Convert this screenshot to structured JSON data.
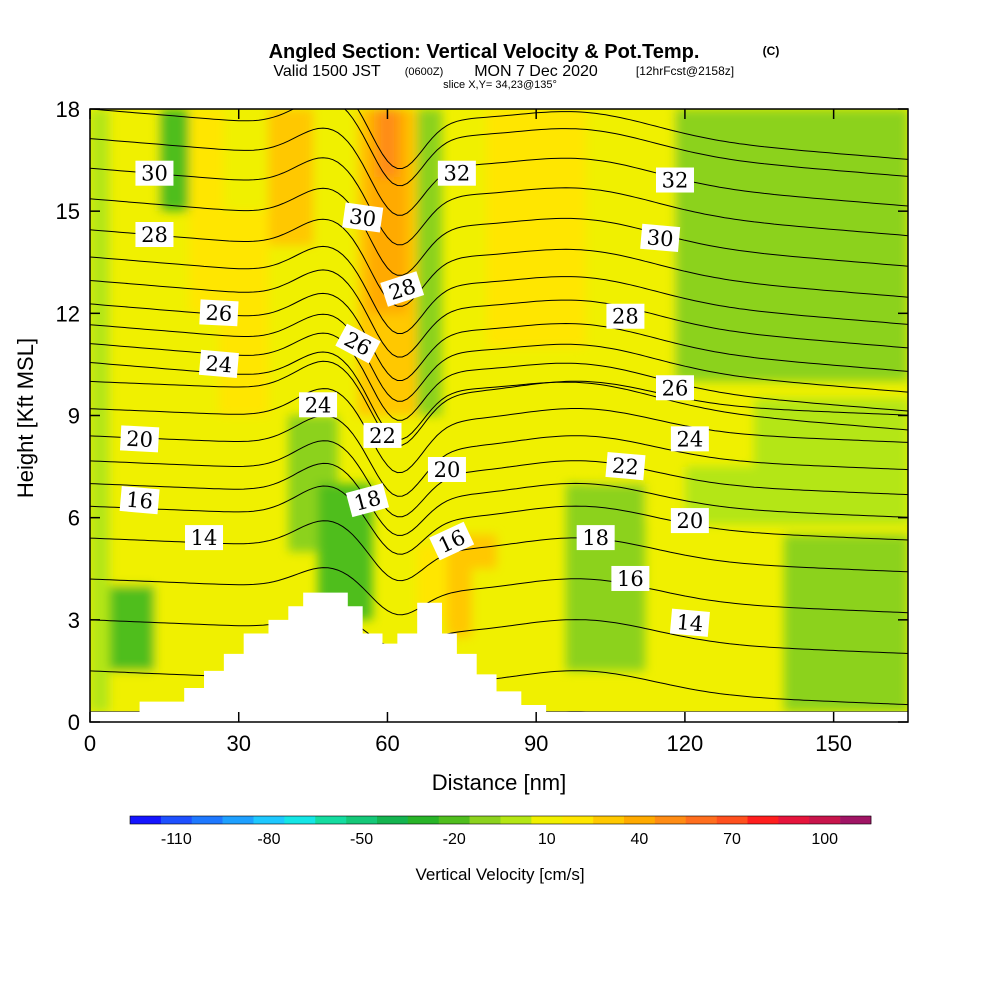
{
  "title": {
    "main": "Angled Section: Vertical Velocity & Pot.Temp.",
    "unit_mark": "(C)",
    "valid_prefix": "Valid 1500 JST",
    "valid_z": "(0600Z)",
    "valid_date": "MON 7 Dec 2020",
    "forecast": "[12hrFcst@2158z]",
    "slice": "slice X,Y= 34,23@135°"
  },
  "chart_data": {
    "type": "heatmap",
    "xlabel": "Distance [nm]",
    "ylabel": "Height [Kft MSL]",
    "xlim": [
      0,
      165
    ],
    "ylim": [
      0,
      18
    ],
    "x_ticks": [
      0,
      30,
      60,
      90,
      120,
      150
    ],
    "y_ticks": [
      0,
      3,
      6,
      9,
      12,
      15,
      18
    ],
    "x_tick_labels": [
      "0",
      "30",
      "60",
      "90",
      "120",
      "150"
    ],
    "y_tick_labels": [
      "0",
      "3",
      "6",
      "9",
      "12",
      "15",
      "18"
    ],
    "colorbar": {
      "label": "Vertical Velocity [cm/s]",
      "tick_labels": [
        "-110",
        "-80",
        "-50",
        "-20",
        "10",
        "40",
        "70",
        "100"
      ],
      "tick_values": [
        -110,
        -80,
        -50,
        -20,
        10,
        40,
        70,
        100
      ],
      "levels": [
        -120,
        -110,
        -100,
        -90,
        -80,
        -70,
        -60,
        -50,
        -40,
        -30,
        -20,
        -10,
        0,
        10,
        20,
        30,
        40,
        50,
        60,
        70,
        80,
        90,
        100,
        110,
        120
      ],
      "colors": [
        "#1414ff",
        "#1e50ff",
        "#1e78ff",
        "#1ea0ff",
        "#1ec8ff",
        "#14e6e6",
        "#14dca0",
        "#14c878",
        "#14b450",
        "#28b428",
        "#50be1e",
        "#8cd21e",
        "#b4e614",
        "#f0f000",
        "#ffe600",
        "#ffc800",
        "#ffaa00",
        "#ff8c14",
        "#ff6e1e",
        "#ff501e",
        "#ff1e1e",
        "#e6143c",
        "#c8144b",
        "#a01464"
      ]
    },
    "velocity_cells": [
      {
        "x": [
          0,
          4
        ],
        "y": [
          0.3,
          18
        ],
        "v": 5
      },
      {
        "x": [
          4,
          14
        ],
        "y": [
          0.3,
          18
        ],
        "v": 15
      },
      {
        "x": [
          14,
          20
        ],
        "y": [
          15,
          18
        ],
        "v": -15
      },
      {
        "x": [
          20,
          27
        ],
        "y": [
          12,
          18
        ],
        "v": 25
      },
      {
        "x": [
          26,
          36
        ],
        "y": [
          9,
          15
        ],
        "v": 25
      },
      {
        "x": [
          36,
          45
        ],
        "y": [
          14,
          18
        ],
        "v": 35
      },
      {
        "x": [
          54,
          66
        ],
        "y": [
          9,
          18
        ],
        "v": 35
      },
      {
        "x": [
          56,
          64
        ],
        "y": [
          12,
          18
        ],
        "v": 45
      },
      {
        "x": [
          58,
          62
        ],
        "y": [
          16,
          18
        ],
        "v": 55
      },
      {
        "x": [
          66,
          71
        ],
        "y": [
          9,
          18
        ],
        "v": -5
      },
      {
        "x": [
          80,
          104
        ],
        "y": [
          11,
          18
        ],
        "v": 25
      },
      {
        "x": [
          100,
          120
        ],
        "y": [
          6,
          18
        ],
        "v": 15
      },
      {
        "x": [
          118,
          165
        ],
        "y": [
          10,
          18
        ],
        "v": -5
      },
      {
        "x": [
          134,
          165
        ],
        "y": [
          6,
          9.5
        ],
        "v": 5
      },
      {
        "x": [
          140,
          165
        ],
        "y": [
          0.3,
          5.5
        ],
        "v": -5
      },
      {
        "x": [
          4,
          13
        ],
        "y": [
          1.5,
          4
        ],
        "v": -15
      },
      {
        "x": [
          40,
          50
        ],
        "y": [
          5,
          9
        ],
        "v": -10
      },
      {
        "x": [
          46,
          57
        ],
        "y": [
          3,
          7
        ],
        "v": -18
      },
      {
        "x": [
          66,
          72
        ],
        "y": [
          3,
          5.2
        ],
        "v": 25
      },
      {
        "x": [
          72,
          82
        ],
        "y": [
          2.5,
          5.5
        ],
        "v": 35
      },
      {
        "x": [
          77,
          92
        ],
        "y": [
          0.3,
          4.5
        ],
        "v": 15
      },
      {
        "x": [
          96,
          112
        ],
        "y": [
          1.5,
          7
        ],
        "v": -5
      },
      {
        "x": [
          120,
          165
        ],
        "y": [
          5.8,
          7.5
        ],
        "v": 5
      }
    ],
    "terrain": [
      [
        0,
        0.3
      ],
      [
        10,
        0.3
      ],
      [
        10,
        0.6
      ],
      [
        19,
        0.6
      ],
      [
        19,
        1.0
      ],
      [
        23,
        1.0
      ],
      [
        23,
        1.5
      ],
      [
        27,
        1.5
      ],
      [
        27,
        2.0
      ],
      [
        31,
        2.0
      ],
      [
        31,
        2.6
      ],
      [
        36,
        2.6
      ],
      [
        36,
        3.0
      ],
      [
        40,
        3.0
      ],
      [
        40,
        3.4
      ],
      [
        43,
        3.4
      ],
      [
        43,
        3.8
      ],
      [
        52,
        3.8
      ],
      [
        52,
        3.4
      ],
      [
        55,
        3.4
      ],
      [
        55,
        2.6
      ],
      [
        59,
        2.6
      ],
      [
        59,
        2.3
      ],
      [
        62,
        2.3
      ],
      [
        62,
        2.6
      ],
      [
        66,
        2.6
      ],
      [
        66,
        3.5
      ],
      [
        71,
        3.5
      ],
      [
        71,
        2.6
      ],
      [
        74,
        2.6
      ],
      [
        74,
        2.0
      ],
      [
        78,
        2.0
      ],
      [
        78,
        1.4
      ],
      [
        82,
        1.4
      ],
      [
        82,
        0.9
      ],
      [
        87,
        0.9
      ],
      [
        87,
        0.5
      ],
      [
        92,
        0.5
      ],
      [
        92,
        0.3
      ],
      [
        165,
        0.3
      ]
    ],
    "isentropes_C": [
      12,
      13,
      14,
      15,
      16,
      17,
      18,
      19,
      20,
      21,
      22,
      23,
      24,
      25,
      26,
      27,
      28,
      29,
      30,
      31,
      32,
      33,
      34
    ],
    "contour_labels": [
      {
        "text": "30",
        "x": 13,
        "y": 16.1,
        "angle": 0
      },
      {
        "text": "28",
        "x": 13,
        "y": 14.3,
        "angle": 0
      },
      {
        "text": "26",
        "x": 26,
        "y": 12.0,
        "angle": 3
      },
      {
        "text": "24",
        "x": 26,
        "y": 10.5,
        "angle": 5
      },
      {
        "text": "20",
        "x": 10,
        "y": 8.3,
        "angle": 3
      },
      {
        "text": "16",
        "x": 10,
        "y": 6.5,
        "angle": 5
      },
      {
        "text": "14",
        "x": 23,
        "y": 5.4,
        "angle": 0
      },
      {
        "text": "30",
        "x": 55,
        "y": 14.8,
        "angle": 8
      },
      {
        "text": "28",
        "x": 63,
        "y": 12.7,
        "angle": -18
      },
      {
        "text": "26",
        "x": 54,
        "y": 11.1,
        "angle": 28
      },
      {
        "text": "24",
        "x": 46,
        "y": 9.3,
        "angle": 0
      },
      {
        "text": "22",
        "x": 59,
        "y": 8.4,
        "angle": 0
      },
      {
        "text": "18",
        "x": 56,
        "y": 6.5,
        "angle": -15
      },
      {
        "text": "20",
        "x": 72,
        "y": 7.4,
        "angle": 0
      },
      {
        "text": "16",
        "x": 73,
        "y": 5.3,
        "angle": -25
      },
      {
        "text": "32",
        "x": 74,
        "y": 16.1,
        "angle": 0
      },
      {
        "text": "32",
        "x": 118,
        "y": 15.9,
        "angle": 0
      },
      {
        "text": "30",
        "x": 115,
        "y": 14.2,
        "angle": 5
      },
      {
        "text": "28",
        "x": 108,
        "y": 11.9,
        "angle": 0
      },
      {
        "text": "26",
        "x": 118,
        "y": 9.8,
        "angle": 0
      },
      {
        "text": "24",
        "x": 121,
        "y": 8.3,
        "angle": 0
      },
      {
        "text": "22",
        "x": 108,
        "y": 7.5,
        "angle": 5
      },
      {
        "text": "20",
        "x": 121,
        "y": 5.9,
        "angle": 0
      },
      {
        "text": "18",
        "x": 102,
        "y": 5.4,
        "angle": 0
      },
      {
        "text": "16",
        "x": 109,
        "y": 4.2,
        "angle": 0
      },
      {
        "text": "14",
        "x": 121,
        "y": 2.9,
        "angle": 5
      }
    ]
  }
}
